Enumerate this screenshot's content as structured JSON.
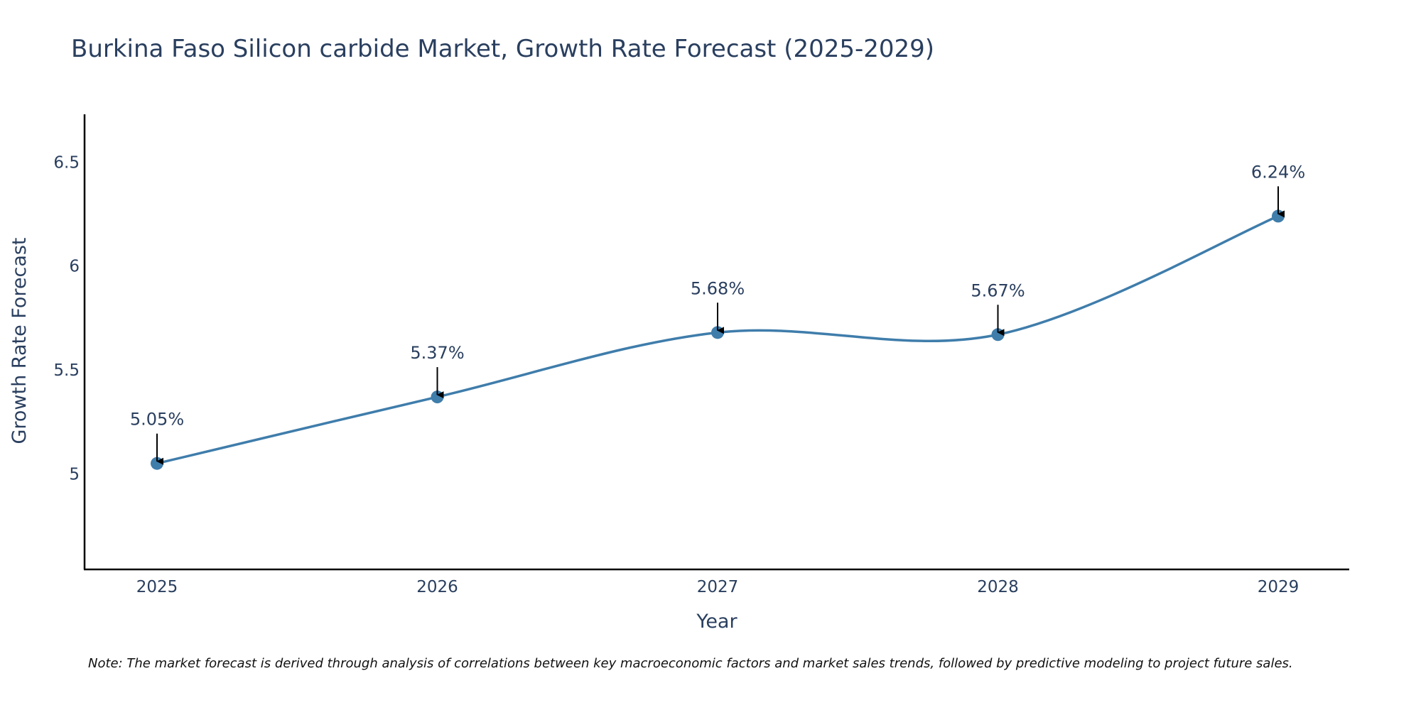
{
  "chart_data": {
    "type": "line",
    "title": "Burkina Faso Silicon carbide Market, Growth Rate Forecast (2025-2029)",
    "xlabel": "Year",
    "ylabel": "Growth Rate Forecast",
    "categories": [
      "2025",
      "2026",
      "2027",
      "2028",
      "2029"
    ],
    "values": [
      5.05,
      5.37,
      5.68,
      5.67,
      6.24
    ],
    "data_labels": [
      "5.05%",
      "5.37%",
      "5.68%",
      "5.67%",
      "6.24%"
    ],
    "ylim": [
      4.54,
      6.73
    ],
    "yticks": [
      5,
      5.5,
      6,
      6.5
    ],
    "ytick_labels": [
      "5",
      "5.5",
      "6",
      "6.5"
    ],
    "line_shape": "spline",
    "grid": false,
    "legend": "none",
    "colors": {
      "line": "#3f7dab",
      "marker": "#3f7dab",
      "axis": "#000000",
      "text": "#2a3f5f",
      "arrow": "#000000"
    }
  },
  "note": "Note: The market forecast is derived through analysis of correlations between key macroeconomic factors and market sales trends, followed by predictive modeling to project future sales."
}
